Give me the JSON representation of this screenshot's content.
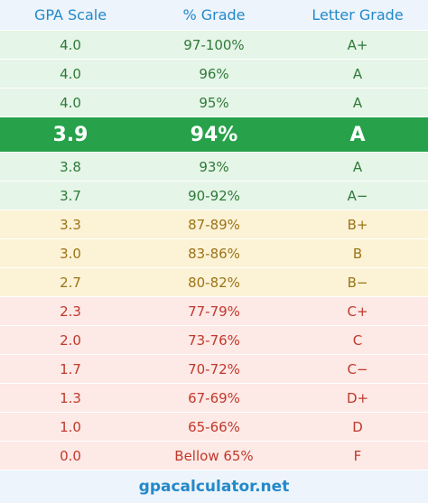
{
  "header": {
    "columns": [
      "GPA Scale",
      "% Grade",
      "Letter Grade"
    ]
  },
  "table": {
    "rows": [
      [
        "4.0",
        "97-100%",
        "A+"
      ],
      [
        "4.0",
        "96%",
        "A"
      ],
      [
        "4.0",
        "95%",
        "A"
      ],
      [
        "3.9",
        "94%",
        "A"
      ],
      [
        "3.8",
        "93%",
        "A"
      ],
      [
        "3.7",
        "90-92%",
        "A−"
      ],
      [
        "3.3",
        "87-89%",
        "B+"
      ],
      [
        "3.0",
        "83-86%",
        "B"
      ],
      [
        "2.7",
        "80-82%",
        "B−"
      ],
      [
        "2.3",
        "77-79%",
        "C+"
      ],
      [
        "2.0",
        "73-76%",
        "C"
      ],
      [
        "1.7",
        "70-72%",
        "C−"
      ],
      [
        "1.3",
        "67-69%",
        "D+"
      ],
      [
        "1.0",
        "65-66%",
        "D"
      ],
      [
        "0.0",
        "Bellow 65%",
        "F"
      ]
    ]
  },
  "footer": {
    "site": "gpacalculator.net"
  }
}
